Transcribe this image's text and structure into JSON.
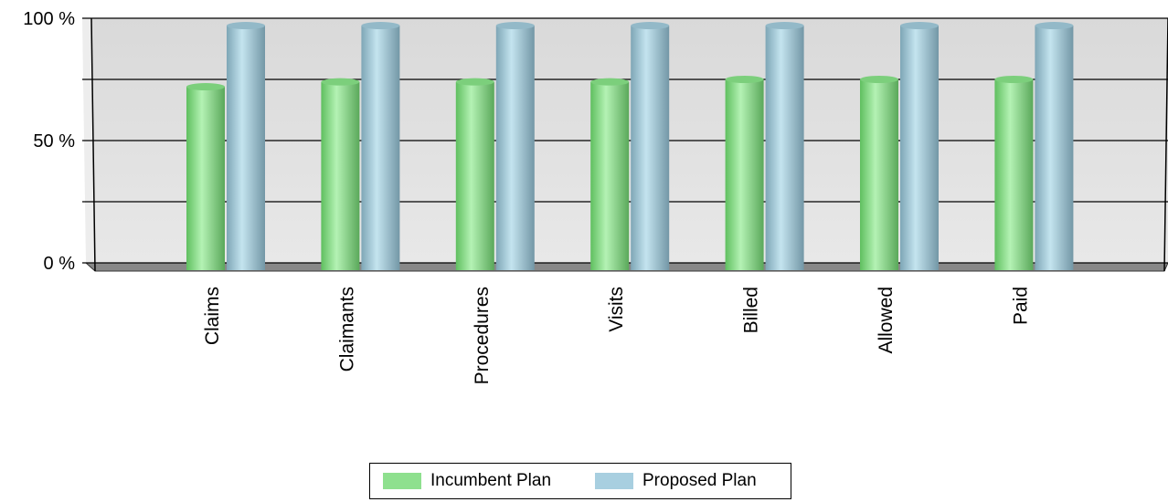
{
  "chart_data": {
    "type": "bar",
    "categories": [
      "Claims",
      "Claimants",
      "Procedures",
      "Visits",
      "Billed",
      "Allowed",
      "Paid"
    ],
    "series": [
      {
        "name": "Incumbent Plan",
        "values": [
          72,
          74,
          74,
          74,
          75,
          75,
          75
        ],
        "color": "#8ee08e"
      },
      {
        "name": "Proposed Plan",
        "values": [
          97,
          97,
          97,
          97,
          97,
          97,
          97
        ],
        "color": "#a8cfe0"
      }
    ],
    "y_ticks": [
      "0 %",
      "50 %",
      "100 %"
    ],
    "ylim": [
      0,
      100
    ],
    "grid": true,
    "legend_position": "bottom",
    "title": "",
    "xlabel": "",
    "ylabel": ""
  }
}
